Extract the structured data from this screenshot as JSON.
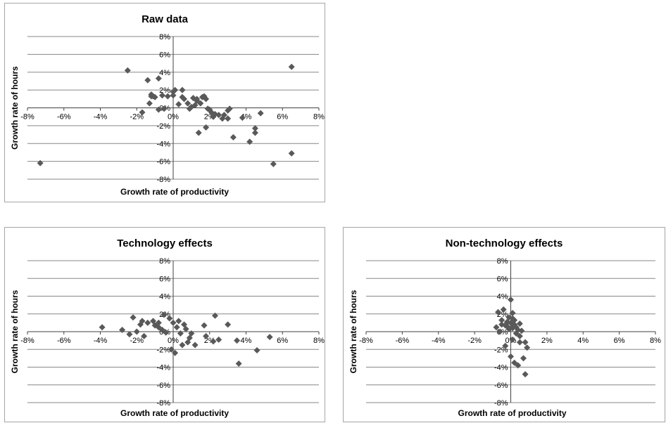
{
  "colors": {
    "marker": "#595959",
    "gridline": "#878787",
    "axis": "#404040",
    "border": "#a6a6a6"
  },
  "chart_data": [
    {
      "type": "scatter",
      "title": "Raw data",
      "xlabel": "Growth rate of productivity",
      "ylabel": "Growth rate of hours",
      "xlim": [
        -8,
        8
      ],
      "ylim": [
        -8,
        8
      ],
      "x_ticks": [
        "-8%",
        "-6%",
        "-4%",
        "-2%",
        "0%",
        "2%",
        "4%",
        "6%",
        "8%"
      ],
      "y_ticks": [
        "8%",
        "6%",
        "4%",
        "2%",
        "0%",
        "-2%",
        "-4%",
        "-6%",
        "-8%"
      ],
      "grid": true,
      "x": [
        -7.3,
        -2.5,
        -1.7,
        -1.4,
        -1.3,
        -1.2,
        -1.2,
        -1.1,
        -1.0,
        -0.8,
        -0.8,
        -0.6,
        -0.5,
        -0.3,
        0.0,
        0.0,
        0.1,
        0.3,
        0.5,
        0.5,
        0.6,
        0.8,
        0.9,
        1.0,
        1.1,
        1.2,
        1.3,
        1.3,
        1.4,
        1.5,
        1.6,
        1.7,
        1.8,
        1.8,
        1.9,
        2.0,
        2.1,
        2.2,
        2.3,
        2.5,
        2.7,
        2.8,
        3.0,
        3.0,
        3.1,
        3.3,
        3.8,
        4.2,
        4.5,
        4.5,
        4.8,
        5.5,
        6.5,
        6.5
      ],
      "y": [
        -6.2,
        4.2,
        -0.5,
        3.1,
        0.5,
        1.5,
        1.3,
        1.3,
        1.2,
        3.3,
        -0.2,
        1.4,
        -0.1,
        1.3,
        1.8,
        1.4,
        2.0,
        0.4,
        1.2,
        2.0,
        1.0,
        0.5,
        -0.1,
        0.1,
        1.1,
        0.3,
        0.8,
        1.0,
        -2.8,
        0.5,
        1.2,
        1.3,
        -2.2,
        1.0,
        -0.1,
        -0.2,
        -0.5,
        -1.0,
        -0.7,
        -0.8,
        -1.2,
        -0.8,
        -0.3,
        -1.2,
        -0.1,
        -3.3,
        -1.1,
        -3.8,
        -2.3,
        -2.8,
        -0.6,
        -6.3,
        4.6,
        -5.1
      ]
    },
    {
      "type": "scatter",
      "title": "Technology effects",
      "xlabel": "Growth rate of productivity",
      "ylabel": "Growth rate of hours",
      "xlim": [
        -8,
        8
      ],
      "ylim": [
        -8,
        8
      ],
      "x_ticks": [
        "-8%",
        "-6%",
        "-4%",
        "-2%",
        "0%",
        "2%",
        "4%",
        "6%",
        "8%"
      ],
      "y_ticks": [
        "8%",
        "6%",
        "4%",
        "2%",
        "0%",
        "-2%",
        "-4%",
        "-6%",
        "-8%"
      ],
      "grid": true,
      "x": [
        -3.9,
        -2.8,
        -2.4,
        -2.2,
        -2.0,
        -1.8,
        -1.7,
        -1.6,
        -1.4,
        -1.1,
        -1.0,
        -0.8,
        -0.8,
        -0.6,
        -0.5,
        -0.4,
        -0.2,
        -0.1,
        0.0,
        0.1,
        0.2,
        0.3,
        0.4,
        0.5,
        0.6,
        0.7,
        0.8,
        0.9,
        1.0,
        1.2,
        1.7,
        1.8,
        2.2,
        2.3,
        2.5,
        3.0,
        3.5,
        3.6,
        4.6,
        5.3
      ],
      "y": [
        0.5,
        0.2,
        -0.3,
        1.6,
        0.0,
        0.8,
        1.2,
        -0.5,
        1.0,
        1.2,
        0.7,
        1.0,
        0.5,
        0.2,
        1.9,
        -0.1,
        1.5,
        -2.0,
        1.0,
        -2.4,
        0.5,
        1.2,
        -0.2,
        -1.5,
        0.8,
        0.3,
        -1.2,
        -0.7,
        -0.2,
        -1.5,
        0.7,
        -0.5,
        -1.1,
        1.8,
        -0.9,
        0.8,
        -1.0,
        -3.6,
        -2.1,
        -0.6
      ]
    },
    {
      "type": "scatter",
      "title": "Non-technology effects",
      "xlabel": "Growth rate of productivity",
      "ylabel": "Growth rate of hours",
      "xlim": [
        -8,
        8
      ],
      "ylim": [
        -8,
        8
      ],
      "x_ticks": [
        "-8%",
        "-6%",
        "-4%",
        "-2%",
        "0%",
        "2%",
        "4%",
        "6%",
        "8%"
      ],
      "y_ticks": [
        "8%",
        "6%",
        "4%",
        "2%",
        "0%",
        "-2%",
        "-4%",
        "-6%",
        "-8%"
      ],
      "grid": true,
      "x": [
        -0.8,
        -0.7,
        -0.6,
        -0.5,
        -0.5,
        -0.4,
        -0.3,
        -0.3,
        -0.2,
        -0.2,
        -0.1,
        -0.1,
        0.0,
        0.0,
        0.0,
        0.1,
        0.1,
        0.1,
        0.1,
        0.2,
        0.2,
        0.2,
        0.3,
        0.3,
        0.4,
        0.4,
        0.5,
        0.5,
        0.5,
        0.6,
        0.7,
        0.8,
        0.8,
        0.9,
        -0.2,
        0.1
      ],
      "y": [
        0.5,
        2.2,
        0.0,
        1.3,
        0.8,
        2.5,
        0.7,
        -1.6,
        1.1,
        0.6,
        1.6,
        0.3,
        3.6,
        1.0,
        -2.8,
        2.1,
        1.5,
        0.4,
        -0.9,
        1.3,
        0.8,
        -3.5,
        0.5,
        -0.2,
        0.2,
        -3.8,
        -1.2,
        0.9,
        -0.5,
        0.1,
        -3.0,
        -4.8,
        -1.2,
        -1.8,
        1.0,
        0.6
      ]
    }
  ]
}
